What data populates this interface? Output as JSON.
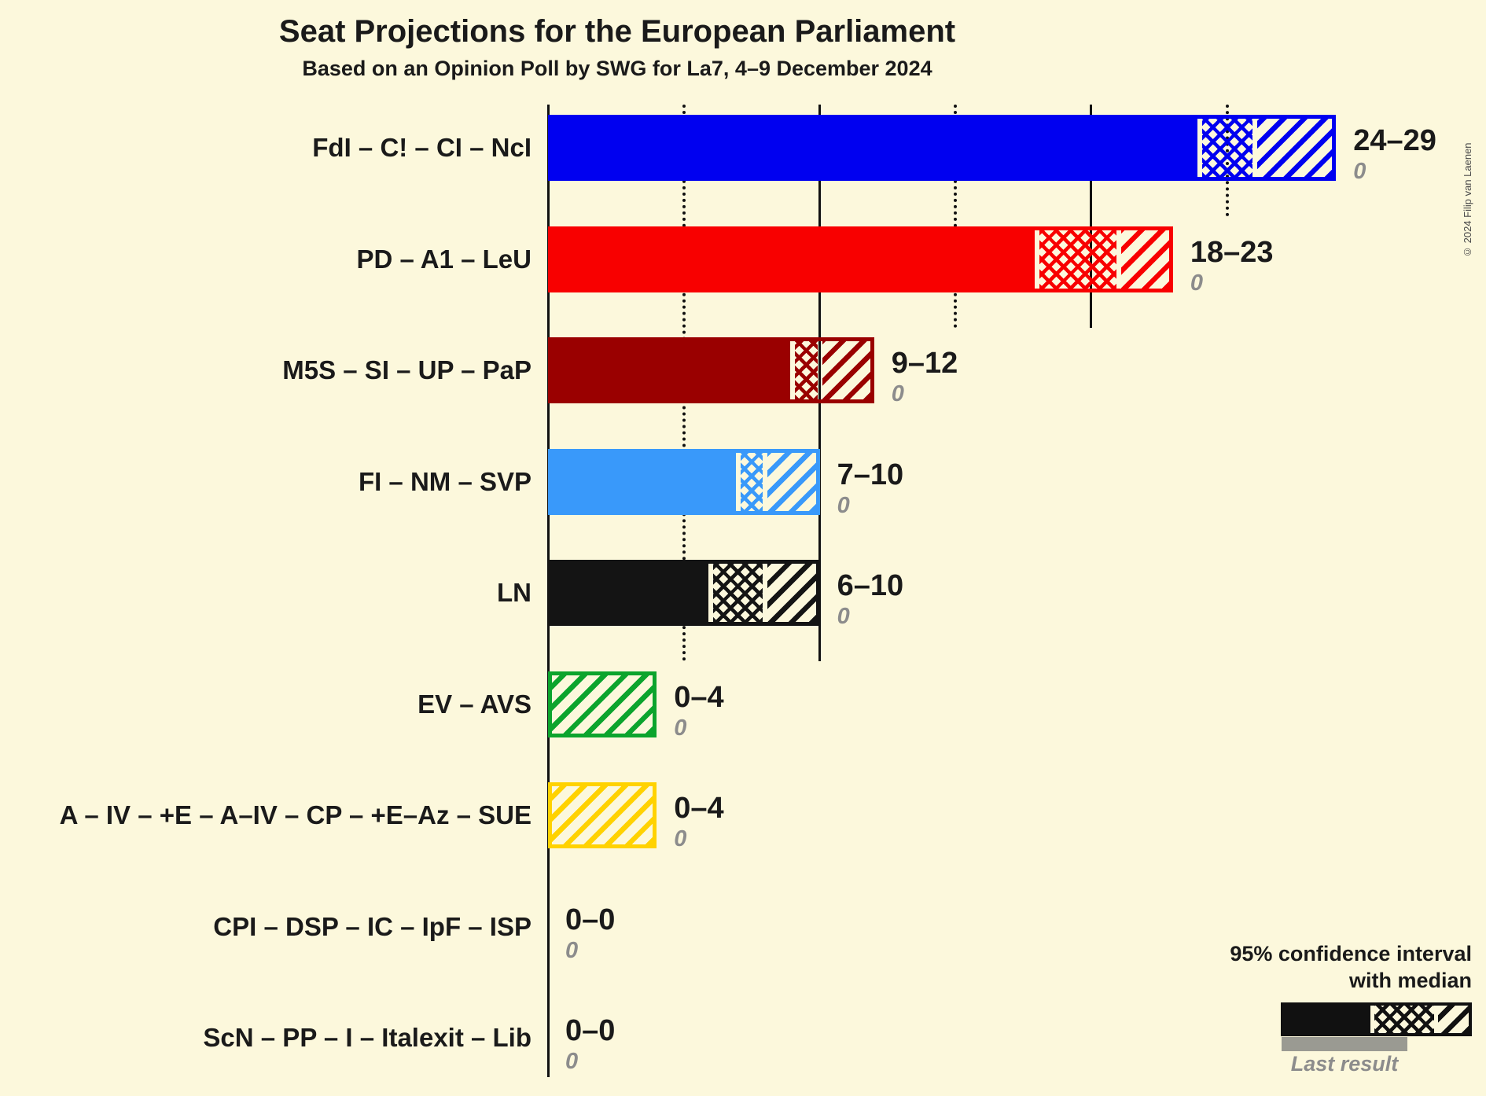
{
  "title": "Seat Projections for the European Parliament",
  "subtitle": "Based on an Opinion Poll by SWG for La7, 4–9 December 2024",
  "copyright": "© 2024 Filip van Laenen",
  "legend": {
    "ci_label_line1": "95% confidence interval",
    "ci_label_line2": "with median",
    "last_result_label": "Last result"
  },
  "colors": {
    "background": "#FCF8DC",
    "text": "#1A1A1A",
    "muted": "#8C8C8C",
    "grid": "#111111",
    "legend_sample": "#111111",
    "last_result_bar": "#9A9A92"
  },
  "chart_data": {
    "type": "bar",
    "orientation": "horizontal",
    "unit": "seats",
    "title": "Seat Projections for the European Parliament",
    "subtitle": "Based on an Opinion Poll by SWG for La7, 4–9 December 2024",
    "x_axis": {
      "min": 0,
      "max": 29,
      "tick_interval": 5,
      "solid_gridlines": [
        10,
        20
      ],
      "dotted_gridlines": [
        5,
        15,
        25
      ],
      "tick_labels_visible": false
    },
    "bar_style_note": "solid = up to CI low, crosshatch = CI low to median, diagonal = median to CI high",
    "rows": [
      {
        "label": "FdI – C! – CI – NcI",
        "color": "#0000F0",
        "ci_low": 24,
        "median": 26,
        "ci_high": 29,
        "range_label": "24–29",
        "last_result": 0,
        "last_result_label": "0"
      },
      {
        "label": "PD – A1 – LeU",
        "color": "#F80000",
        "ci_low": 18,
        "median": 21,
        "ci_high": 23,
        "range_label": "18–23",
        "last_result": 0,
        "last_result_label": "0"
      },
      {
        "label": "M5S – SI – UP – PaP",
        "color": "#9A0000",
        "ci_low": 9,
        "median": 10,
        "ci_high": 12,
        "range_label": "9–12",
        "last_result": 0,
        "last_result_label": "0"
      },
      {
        "label": "FI – NM – SVP",
        "color": "#3999FA",
        "ci_low": 7,
        "median": 8,
        "ci_high": 10,
        "range_label": "7–10",
        "last_result": 0,
        "last_result_label": "0"
      },
      {
        "label": "LN",
        "color": "#141414",
        "ci_low": 6,
        "median": 8,
        "ci_high": 10,
        "range_label": "6–10",
        "last_result": 0,
        "last_result_label": "0"
      },
      {
        "label": "EV – AVS",
        "color": "#0CA42D",
        "ci_low": 0,
        "median": 0,
        "ci_high": 4,
        "range_label": "0–4",
        "last_result": 0,
        "last_result_label": "0"
      },
      {
        "label": "A – IV – +E – A–IV – CP – +E–Az – SUE",
        "color": "#FFD200",
        "ci_low": 0,
        "median": 0,
        "ci_high": 4,
        "range_label": "0–4",
        "last_result": 0,
        "last_result_label": "0"
      },
      {
        "label": "CPI – DSP – IC – IpF – ISP",
        "color": "#1A1A1A",
        "ci_low": 0,
        "median": 0,
        "ci_high": 0,
        "range_label": "0–0",
        "last_result": 0,
        "last_result_label": "0"
      },
      {
        "label": "ScN – PP – I – Italexit – Lib",
        "color": "#1A1A1A",
        "ci_low": 0,
        "median": 0,
        "ci_high": 0,
        "range_label": "0–0",
        "last_result": 0,
        "last_result_label": "0"
      }
    ]
  }
}
